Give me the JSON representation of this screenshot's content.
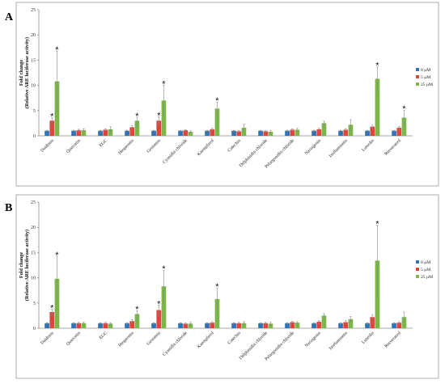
{
  "panels": [
    {
      "letter": "A"
    },
    {
      "letter": "B"
    }
  ],
  "chart_data": [
    {
      "type": "bar",
      "panel": "A",
      "title": "",
      "ylabel_line1": "Fold change",
      "ylabel_line2": "(Relative ARE luciferase activity)",
      "xlabel": "",
      "ylim": [
        0,
        25
      ],
      "yticks": [
        0,
        5,
        10,
        15,
        20,
        25
      ],
      "legend_position": "right",
      "colors": [
        "#2f75b5",
        "#e0443c",
        "#7ab648"
      ],
      "categories": [
        "Daidzein",
        "Quercetin",
        "EGC",
        "Hesperetin",
        "Genistein",
        "Cyanidin chloride",
        "Kaempferol",
        "Catechin",
        "Delphinidin chloride",
        "Pelargonidin chloride",
        "Naringenin",
        "Isorhamnetin",
        "Luteolin",
        "Resveratrol"
      ],
      "series": [
        {
          "name": "0 μM",
          "values": [
            1,
            1,
            1,
            1,
            1,
            1,
            1,
            1,
            1,
            1,
            1,
            1,
            1,
            1
          ],
          "errors": [
            0.1,
            0.1,
            0.1,
            0.1,
            0.1,
            0.1,
            0.1,
            0.1,
            0.1,
            0.1,
            0.1,
            0.1,
            0.1,
            0.1
          ]
        },
        {
          "name": "5 μM",
          "values": [
            3,
            1.1,
            1.2,
            1.7,
            3,
            1.1,
            1.3,
            0.9,
            0.9,
            1.2,
            1.3,
            1.2,
            1.8,
            1.6
          ],
          "errors": [
            0.6,
            0.2,
            0.2,
            0.3,
            0.8,
            0.1,
            0.2,
            0.2,
            0.1,
            0.2,
            0.2,
            0.2,
            0.3,
            0.3
          ]
        },
        {
          "name": "25 μM",
          "values": [
            10.8,
            1.1,
            1.3,
            3,
            7,
            0.8,
            5.4,
            1.6,
            0.8,
            1.2,
            2.5,
            2.2,
            11.3,
            3.6
          ],
          "errors": [
            6,
            0.3,
            0.5,
            0.7,
            3,
            0.2,
            1.3,
            0.7,
            0.3,
            0.3,
            0.4,
            1,
            2.4,
            1.5
          ]
        }
      ],
      "significance": [
        {
          "category": "Daidzein",
          "series": "5 μM"
        },
        {
          "category": "Daidzein",
          "series": "25 μM"
        },
        {
          "category": "Hesperetin",
          "series": "25 μM"
        },
        {
          "category": "Genistein",
          "series": "5 μM"
        },
        {
          "category": "Genistein",
          "series": "25 μM"
        },
        {
          "category": "Kaempferol",
          "series": "25 μM"
        },
        {
          "category": "Luteolin",
          "series": "25 μM"
        },
        {
          "category": "Resveratrol",
          "series": "25 μM"
        }
      ],
      "significance_mark": "*"
    },
    {
      "type": "bar",
      "panel": "B",
      "title": "",
      "ylabel_line1": "Fold change",
      "ylabel_line2": "(Relative ARE luciferase activity)",
      "xlabel": "",
      "ylim": [
        0,
        25
      ],
      "yticks": [
        0,
        5,
        10,
        15,
        20,
        25
      ],
      "legend_position": "right",
      "colors": [
        "#2f75b5",
        "#e0443c",
        "#7ab648"
      ],
      "categories": [
        "Daidzein",
        "Quercetin",
        "EGC",
        "Hesperetin",
        "Genistein",
        "Cyanidin chloride",
        "Kaempferol",
        "Catechin",
        "Delphinidin chloride",
        "Pelargonidin chloride",
        "Naringenin",
        "Isorhamnetin",
        "Luteolin",
        "Resveratrol"
      ],
      "series": [
        {
          "name": "0 μM",
          "values": [
            1,
            1,
            1,
            1,
            1,
            1,
            1,
            1,
            1,
            1,
            1,
            1,
            1,
            1
          ],
          "errors": [
            0.1,
            0.1,
            0.1,
            0.1,
            0.1,
            0.1,
            0.1,
            0.1,
            0.1,
            0.1,
            0.1,
            0.1,
            0.1,
            0.1
          ]
        },
        {
          "name": "5 μM",
          "values": [
            3.2,
            1,
            1,
            1.4,
            3.6,
            0.9,
            1.1,
            1,
            1,
            1.2,
            1.3,
            1.2,
            2.2,
            1.1
          ],
          "errors": [
            0.6,
            0.2,
            0.2,
            0.3,
            1,
            0.2,
            0.2,
            0.2,
            0.2,
            0.2,
            0.2,
            0.3,
            0.5,
            0.2
          ]
        },
        {
          "name": "25 μM",
          "values": [
            9.8,
            1,
            0.9,
            2.8,
            8.3,
            0.9,
            5.8,
            1,
            0.9,
            1.1,
            2.5,
            1.8,
            13.4,
            2.2
          ],
          "errors": [
            4.5,
            0.2,
            0.2,
            0.7,
            3.2,
            0.3,
            2.2,
            0.3,
            0.3,
            0.2,
            0.4,
            0.5,
            7,
            1
          ]
        }
      ],
      "significance": [
        {
          "category": "Daidzein",
          "series": "5 μM"
        },
        {
          "category": "Daidzein",
          "series": "25 μM"
        },
        {
          "category": "Hesperetin",
          "series": "25 μM"
        },
        {
          "category": "Genistein",
          "series": "5 μM"
        },
        {
          "category": "Genistein",
          "series": "25 μM"
        },
        {
          "category": "Kaempferol",
          "series": "25 μM"
        },
        {
          "category": "Luteolin",
          "series": "25 μM"
        }
      ],
      "significance_mark": "*"
    }
  ]
}
